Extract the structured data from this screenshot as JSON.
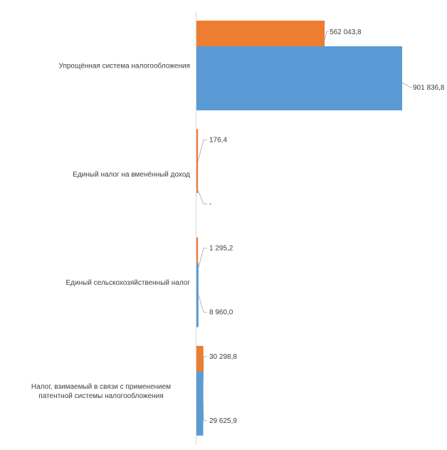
{
  "chart_data": {
    "type": "bar",
    "orientation": "horizontal",
    "grid": false,
    "legend": "none",
    "xlim": [
      0,
      1000000
    ],
    "categories": [
      "Упрощённая система налогообложения",
      "Единый налог на вменённый доход",
      "Единый сельскохозяйственный налог",
      "Налог, взимаемый в связи с применением патентной системы налогообложения"
    ],
    "series": [
      {
        "color": "#ed7d31",
        "values": [
          562043.8,
          176.4,
          1295.2,
          30298.8
        ],
        "labels": [
          "562 043,8",
          "176,4",
          "1 295,2",
          "30 298,8"
        ]
      },
      {
        "color": "#5b9bd5",
        "values": [
          901836.8,
          0,
          8960.0,
          29625.9
        ],
        "labels": [
          "901 836,8",
          "-",
          "8 960,0",
          "29 625,9"
        ]
      }
    ]
  }
}
